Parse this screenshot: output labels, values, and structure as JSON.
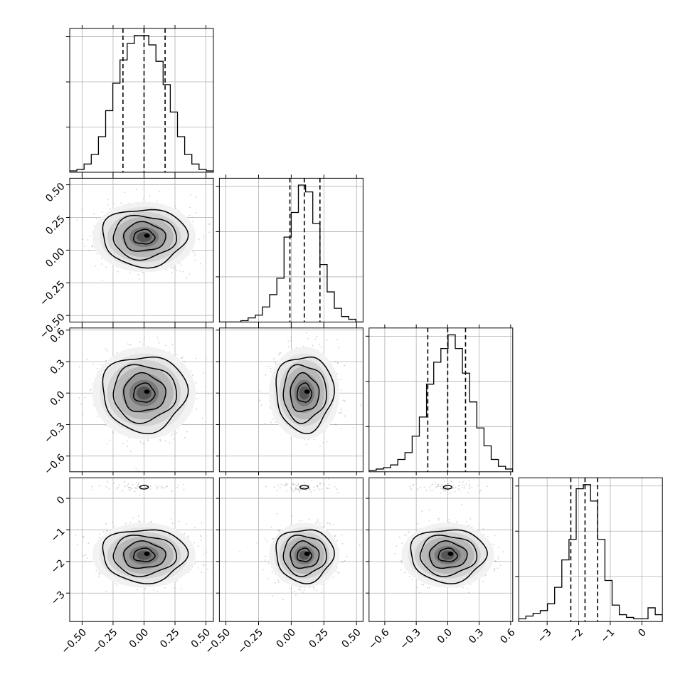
{
  "chart_data": {
    "type": "corner",
    "n_params": 4,
    "grid": true,
    "quantiles": [
      0.16,
      0.5,
      0.84
    ],
    "params": [
      {
        "range": [
          -0.6,
          0.56
        ],
        "ticks": [
          -0.5,
          -0.25,
          0.0,
          0.25,
          0.5
        ],
        "tick_labels": [
          "−0.50",
          "−0.25",
          "0.00",
          "0.25",
          "0.50"
        ],
        "quantile_values": [
          -0.17,
          0.0,
          0.17
        ],
        "mean": 0.0,
        "sd": 0.17,
        "spike": null
      },
      {
        "range": [
          -0.55,
          0.55
        ],
        "ticks": [
          -0.5,
          -0.25,
          0.0,
          0.25,
          0.5
        ],
        "tick_labels": [
          "−0.50",
          "−0.25",
          "0.00",
          "0.25",
          "0.50"
        ],
        "quantile_values": [
          -0.01,
          0.1,
          0.22
        ],
        "mean": 0.1,
        "sd": 0.11,
        "spike": null
      },
      {
        "range": [
          -0.75,
          0.62
        ],
        "ticks": [
          -0.6,
          -0.3,
          0.0,
          0.3,
          0.6
        ],
        "tick_labels": [
          "−0.6",
          "−0.3",
          "0.0",
          "0.3",
          "0.6"
        ],
        "quantile_values": [
          -0.19,
          0.0,
          0.17
        ],
        "mean": 0.0,
        "sd": 0.18,
        "spike": null
      },
      {
        "range": [
          -3.9,
          0.65
        ],
        "ticks": [
          -3,
          -2,
          -1,
          0
        ],
        "tick_labels": [
          "−3",
          "−2",
          "−1",
          "0"
        ],
        "quantile_values": [
          -2.25,
          -1.8,
          -1.4
        ],
        "mean": -1.8,
        "sd": 0.42,
        "spike": {
          "center": 0.35,
          "sd": 0.08,
          "weight": 0.05
        }
      }
    ],
    "histograms": [
      {
        "param": 0,
        "bins": 20,
        "counts": [
          1,
          2,
          6,
          13,
          26,
          45,
          65,
          82,
          94,
          100,
          100,
          93,
          81,
          64,
          44,
          26,
          13,
          6,
          2,
          1
        ]
      },
      {
        "param": 1,
        "bins": 20,
        "counts": [
          0,
          0,
          0,
          1,
          3,
          5,
          11,
          20,
          32,
          62,
          80,
          100,
          95,
          72,
          42,
          22,
          10,
          4,
          2,
          0
        ]
      },
      {
        "param": 2,
        "bins": 20,
        "counts": [
          1,
          2,
          3,
          5,
          9,
          14,
          26,
          40,
          64,
          80,
          90,
          100,
          90,
          72,
          51,
          32,
          19,
          9,
          4,
          2
        ]
      },
      {
        "param": 3,
        "bins": 20,
        "counts": [
          2,
          4,
          6,
          8,
          13,
          25,
          45,
          60,
          97,
          100,
          88,
          60,
          30,
          12,
          5,
          3,
          2,
          2,
          10,
          5
        ]
      }
    ],
    "pairs": [
      {
        "x": 0,
        "y": 1
      },
      {
        "x": 0,
        "y": 2
      },
      {
        "x": 1,
        "y": 2
      },
      {
        "x": 0,
        "y": 3
      },
      {
        "x": 1,
        "y": 3
      },
      {
        "x": 2,
        "y": 3
      }
    ]
  }
}
